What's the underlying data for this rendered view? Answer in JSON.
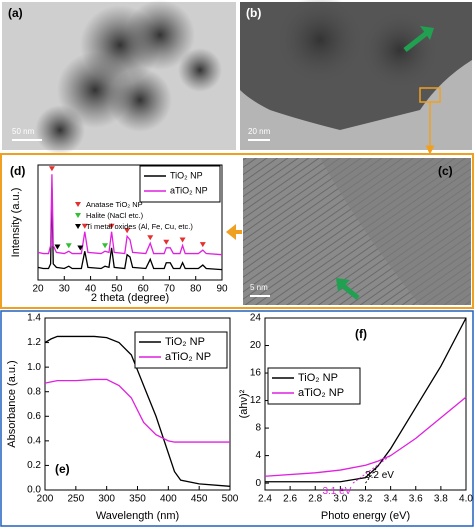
{
  "panels": {
    "a": {
      "label": "(a)",
      "scale": "50 nm"
    },
    "b": {
      "label": "(b)",
      "scale": "20 nm"
    },
    "c": {
      "label": "(c)",
      "scale": "5 nm"
    }
  },
  "chart_data": [
    {
      "type": "line",
      "panel_label": "(d)",
      "x_label": "2 theta (degree)",
      "y_label": "Intensity (a.u.)",
      "x": [
        20,
        22,
        24,
        24.8,
        25.3,
        25.8,
        27,
        30,
        31.7,
        33,
        36.5,
        37.8,
        39,
        44,
        45.5,
        47,
        48,
        49,
        53,
        53.9,
        55,
        56,
        61,
        62.7,
        64,
        68,
        68.8,
        70.3,
        71.5,
        74,
        75,
        76,
        81,
        82.7,
        84,
        90
      ],
      "series": [
        {
          "name": "TiO₂ NP",
          "color": "#000000",
          "values": [
            11,
            10,
            10,
            14,
            80,
            14,
            11,
            10,
            12,
            10,
            10,
            25,
            11,
            10,
            12,
            11,
            28,
            11,
            10,
            22,
            20,
            11,
            10,
            18,
            10,
            10,
            15,
            15,
            10,
            10,
            15,
            10,
            10,
            13,
            10,
            9
          ]
        },
        {
          "name": "aTiO₂ NP",
          "color": "#e020e0",
          "values": [
            24,
            23,
            23,
            30,
            92,
            30,
            24,
            23,
            25,
            23,
            23,
            42,
            24,
            23,
            25,
            24,
            42,
            24,
            23,
            38,
            35,
            24,
            23,
            32,
            23,
            23,
            28,
            28,
            23,
            23,
            30,
            23,
            23,
            26,
            23,
            22
          ]
        }
      ],
      "markers": [
        {
          "name": "Anatase TiO₂ NP",
          "color": "#e53030",
          "x": [
            25.3,
            37.8,
            48,
            53.9,
            62.7,
            68.8,
            75,
            82.7
          ]
        },
        {
          "name": "Halite (NaCl etc.)",
          "color": "#30c030",
          "x": [
            31.7,
            45.5
          ]
        },
        {
          "name": "Ti metal oxides (Al, Fe, Cu, etc.)",
          "color": "#000000",
          "x": [
            27.4,
            36.1
          ]
        }
      ],
      "xlim": [
        20,
        90
      ],
      "xticks": [
        20,
        30,
        40,
        50,
        60,
        70,
        80,
        90
      ],
      "ylim": [
        0,
        100
      ]
    },
    {
      "type": "line",
      "panel_label": "(e)",
      "x_label": "Wavelength (nm)",
      "y_label": "Absorbance (a.u.)",
      "x": [
        200,
        210,
        220,
        250,
        280,
        300,
        320,
        340,
        360,
        380,
        400,
        410,
        420,
        450,
        500
      ],
      "series": [
        {
          "name": "TiO₂ NP",
          "color": "#000000",
          "values": [
            1.2,
            1.23,
            1.25,
            1.25,
            1.25,
            1.24,
            1.2,
            1.1,
            0.85,
            0.6,
            0.3,
            0.15,
            0.08,
            0.05,
            0.03
          ]
        },
        {
          "name": "aTiO₂ NP",
          "color": "#e020e0",
          "values": [
            0.87,
            0.88,
            0.89,
            0.89,
            0.9,
            0.9,
            0.85,
            0.75,
            0.55,
            0.45,
            0.4,
            0.39,
            0.39,
            0.39,
            0.39
          ]
        }
      ],
      "xlim": [
        200,
        500
      ],
      "xticks": [
        200,
        250,
        300,
        350,
        400,
        450,
        500
      ],
      "ylim": [
        0,
        1.4
      ],
      "yticks": [
        {
          "value": 0,
          "label": "0.0"
        },
        0.2,
        0.4,
        0.6,
        0.8,
        {
          "value": 1,
          "label": "1.0"
        },
        1.2,
        1.4
      ]
    },
    {
      "type": "line",
      "panel_label": "(f)",
      "x_label": "Photo energy (eV)",
      "y_label": "(ahν)²",
      "x": [
        2.4,
        2.8,
        3.0,
        3.2,
        3.3,
        3.4,
        3.6,
        3.8,
        4.0
      ],
      "series": [
        {
          "name": "TiO₂ NP",
          "color": "#000000",
          "values": [
            0.2,
            0.2,
            0.2,
            0.8,
            2.5,
            5,
            11,
            17,
            24
          ]
        },
        {
          "name": "aTiO₂ NP",
          "color": "#e020e0",
          "values": [
            1,
            1.5,
            1.9,
            2.6,
            3.2,
            4,
            6.5,
            9.5,
            12.5
          ]
        }
      ],
      "annotations": [
        {
          "label": "3.1 eV",
          "x": 3.1,
          "series": 1,
          "color": "#e020e0"
        },
        {
          "label": "3.2 eV",
          "x": 3.2,
          "series": 0,
          "color": "#000000"
        }
      ],
      "xlim": [
        2.4,
        4.0
      ],
      "xticks": [
        2.4,
        2.6,
        2.8,
        {
          "value": 3,
          "label": "3.0"
        },
        3.2,
        3.4,
        3.6,
        3.8,
        {
          "value": 4,
          "label": "4.0"
        }
      ],
      "ylim": [
        -1,
        24
      ],
      "yticks": [
        0,
        4,
        8,
        12,
        16,
        20,
        24
      ]
    }
  ]
}
